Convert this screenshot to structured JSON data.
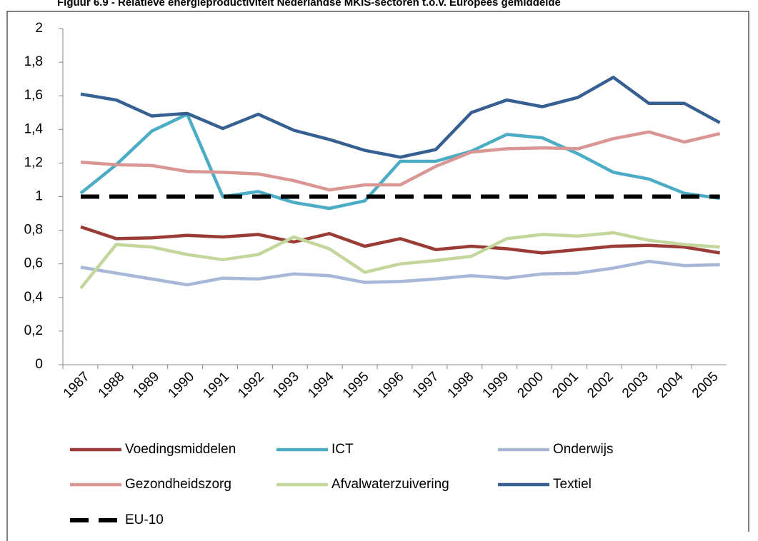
{
  "chart_data": {
    "type": "line",
    "title": "Figuur 6.9 - Relatieve energieproductiviteit Nederlandse MKIS-sectoren t.o.v. Europees gemiddelde",
    "categories": [
      "1987",
      "1988",
      "1989",
      "1990",
      "1991",
      "1992",
      "1993",
      "1994",
      "1995",
      "1996",
      "1997",
      "1998",
      "1999",
      "2000",
      "2001",
      "2002",
      "2003",
      "2004",
      "2005"
    ],
    "series": [
      {
        "name": "Voedingsmiddelen",
        "color": "#9b3b36",
        "values": [
          0.82,
          0.75,
          0.755,
          0.77,
          0.76,
          0.775,
          0.73,
          0.78,
          0.705,
          0.75,
          0.685,
          0.705,
          0.69,
          0.665,
          0.685,
          0.705,
          0.71,
          0.7,
          0.665
        ]
      },
      {
        "name": "ICT",
        "color": "#4bacc6",
        "values": [
          1.02,
          1.19,
          1.39,
          1.49,
          1.0,
          1.03,
          0.965,
          0.93,
          0.975,
          1.21,
          1.21,
          1.27,
          1.37,
          1.35,
          1.255,
          1.145,
          1.105,
          1.02,
          0.99
        ]
      },
      {
        "name": "Onderwijs",
        "color": "#a6b7d8",
        "values": [
          0.58,
          0.545,
          0.51,
          0.475,
          0.515,
          0.51,
          0.54,
          0.53,
          0.49,
          0.495,
          0.51,
          0.53,
          0.515,
          0.54,
          0.545,
          0.575,
          0.615,
          0.59,
          0.595
        ]
      },
      {
        "name": "Gezondheidszorg",
        "color": "#d99694",
        "values": [
          1.205,
          1.19,
          1.185,
          1.15,
          1.145,
          1.135,
          1.095,
          1.04,
          1.07,
          1.07,
          1.18,
          1.265,
          1.285,
          1.29,
          1.285,
          1.345,
          1.385,
          1.325,
          1.375
        ]
      },
      {
        "name": "Afvalwaterzuivering",
        "color": "#c3d69b",
        "values": [
          0.455,
          0.715,
          0.7,
          0.655,
          0.625,
          0.655,
          0.76,
          0.69,
          0.55,
          0.6,
          0.62,
          0.645,
          0.75,
          0.775,
          0.765,
          0.785,
          0.74,
          0.715,
          0.7
        ]
      },
      {
        "name": "Textiel",
        "color": "#376092",
        "values": [
          1.61,
          1.575,
          1.48,
          1.495,
          1.405,
          1.49,
          1.395,
          1.34,
          1.275,
          1.235,
          1.28,
          1.5,
          1.575,
          1.535,
          1.59,
          1.71,
          1.555,
          1.555,
          1.44
        ]
      },
      {
        "name": "EU-10",
        "color": "#000000",
        "dashed": true,
        "values": [
          1,
          1,
          1,
          1,
          1,
          1,
          1,
          1,
          1,
          1,
          1,
          1,
          1,
          1,
          1,
          1,
          1,
          1,
          1
        ]
      }
    ],
    "ylim": [
      0,
      2
    ],
    "yticks": [
      0,
      {
        "value": 0.2,
        "label": "0,2"
      },
      {
        "value": 0.4,
        "label": "0,4"
      },
      {
        "value": 0.6,
        "label": "0,6"
      },
      {
        "value": 0.8,
        "label": "0,8"
      },
      1,
      {
        "value": 1.2,
        "label": "1,2"
      },
      {
        "value": 1.4,
        "label": "1,4"
      },
      {
        "value": 1.6,
        "label": "1,6"
      },
      {
        "value": 1.8,
        "label": "1,8"
      },
      2
    ],
    "grid": false,
    "legend": "bottom"
  }
}
